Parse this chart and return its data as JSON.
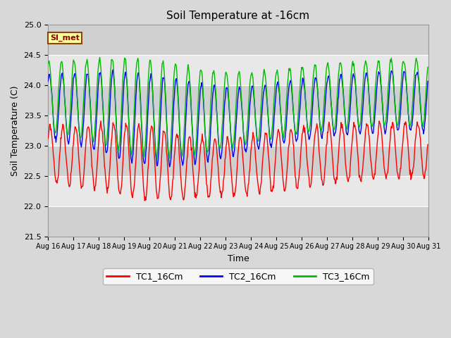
{
  "title": "Soil Temperature at -16cm",
  "xlabel": "Time",
  "ylabel": "Soil Temperature (C)",
  "ylim": [
    21.5,
    25.0
  ],
  "yticks": [
    21.5,
    22.0,
    22.5,
    23.0,
    23.5,
    24.0,
    24.5,
    25.0
  ],
  "legend_labels": [
    "TC1_16Cm",
    "TC2_16Cm",
    "TC3_16Cm"
  ],
  "line_colors": [
    "#ff0000",
    "#0000ff",
    "#00bb00"
  ],
  "annotation_text": "SI_met",
  "annotation_bg": "#ffff99",
  "annotation_border": "#8b4513",
  "num_days": 15,
  "start_day": 16,
  "samples_per_day": 48,
  "fig_bg": "#d8d8d8",
  "plot_bg": "#e8e8e8",
  "band_colors": [
    "#d0d0d0",
    "#e8e8e8"
  ]
}
